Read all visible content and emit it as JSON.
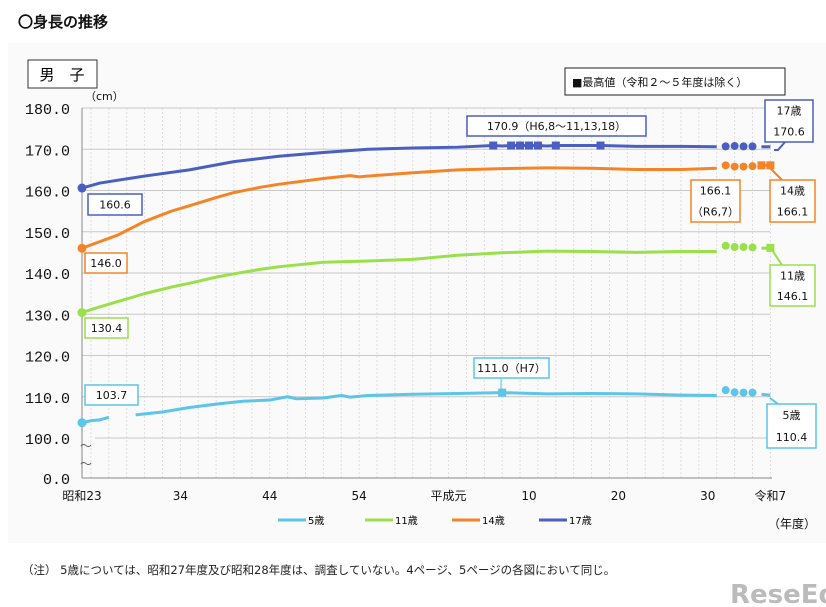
{
  "page_title": "〇身長の推移",
  "note": "（注） 5歳については、昭和27年度及び昭和28年度は、調査していない。4ページ、5ページの各図において同じ。",
  "watermark": "ReseEd",
  "chart_data": {
    "type": "line",
    "panel_label": "男　子",
    "ylabel": "（cm）",
    "xlabel": "（年度）",
    "legend_box": "■最高値（令和２～５年度は除く）",
    "legend_position": "bottom",
    "grid": true,
    "y_axis_break": "～",
    "yticks": [
      "0.0",
      "100.0",
      "110.0",
      "120.0",
      "130.0",
      "140.0",
      "150.0",
      "160.0",
      "170.0",
      "180.0"
    ],
    "ytick_values": [
      0,
      100,
      110,
      120,
      130,
      140,
      150,
      160,
      170,
      180
    ],
    "xticks": [
      {
        "label": "昭和23",
        "year": 1948
      },
      {
        "label": "34",
        "year": 1959
      },
      {
        "label": "44",
        "year": 1969
      },
      {
        "label": "54",
        "year": 1979
      },
      {
        "label": "平成元",
        "year": 1989
      },
      {
        "label": "10",
        "year": 1998
      },
      {
        "label": "20",
        "year": 2008
      },
      {
        "label": "30",
        "year": 2018
      },
      {
        "label": "令和7",
        "year": 2025
      }
    ],
    "xlim": [
      1948,
      2025
    ],
    "series": [
      {
        "name": "5歳",
        "color": "#5bc5ea",
        "max_years": [
          1995
        ],
        "points": [
          [
            1948,
            103.7
          ],
          [
            1949,
            104.2
          ],
          [
            1950,
            104.4
          ],
          [
            1951,
            105.0
          ],
          [
            1952,
            null
          ],
          [
            1953,
            null
          ],
          [
            1954,
            105.6
          ],
          [
            1957,
            106.3
          ],
          [
            1960,
            107.4
          ],
          [
            1963,
            108.2
          ],
          [
            1966,
            108.9
          ],
          [
            1969,
            109.2
          ],
          [
            1971,
            110.0
          ],
          [
            1972,
            109.5
          ],
          [
            1975,
            109.7
          ],
          [
            1977,
            110.3
          ],
          [
            1978,
            109.9
          ],
          [
            1980,
            110.3
          ],
          [
            1985,
            110.6
          ],
          [
            1990,
            110.8
          ],
          [
            1995,
            111.0
          ],
          [
            2000,
            110.7
          ],
          [
            2005,
            110.8
          ],
          [
            2010,
            110.7
          ],
          [
            2015,
            110.4
          ],
          [
            2019,
            110.3
          ],
          [
            2020,
            111.6
          ],
          [
            2021,
            111.1
          ],
          [
            2022,
            111.0
          ],
          [
            2023,
            111.0
          ],
          [
            2024,
            110.6
          ],
          [
            2025,
            110.4
          ]
        ]
      },
      {
        "name": "11歳",
        "color": "#99e04a",
        "max_years": [
          2025
        ],
        "points": [
          [
            1948,
            130.4
          ],
          [
            1950,
            131.8
          ],
          [
            1953,
            133.7
          ],
          [
            1955,
            135.0
          ],
          [
            1958,
            136.6
          ],
          [
            1960,
            137.5
          ],
          [
            1963,
            139.0
          ],
          [
            1965,
            139.8
          ],
          [
            1968,
            140.9
          ],
          [
            1970,
            141.5
          ],
          [
            1975,
            142.6
          ],
          [
            1980,
            142.9
          ],
          [
            1985,
            143.3
          ],
          [
            1990,
            144.3
          ],
          [
            1995,
            144.9
          ],
          [
            2000,
            145.3
          ],
          [
            2005,
            145.2
          ],
          [
            2010,
            145.0
          ],
          [
            2015,
            145.2
          ],
          [
            2019,
            145.2
          ],
          [
            2020,
            146.6
          ],
          [
            2021,
            146.3
          ],
          [
            2022,
            146.3
          ],
          [
            2023,
            146.2
          ],
          [
            2024,
            146.0
          ],
          [
            2025,
            146.1
          ]
        ]
      },
      {
        "name": "14歳",
        "color": "#f58426",
        "max_years": [
          2024,
          2025
        ],
        "points": [
          [
            1948,
            146.0
          ],
          [
            1950,
            147.6
          ],
          [
            1952,
            149.2
          ],
          [
            1955,
            152.5
          ],
          [
            1958,
            155.0
          ],
          [
            1960,
            156.3
          ],
          [
            1963,
            158.3
          ],
          [
            1965,
            159.5
          ],
          [
            1968,
            160.8
          ],
          [
            1970,
            161.5
          ],
          [
            1975,
            162.9
          ],
          [
            1978,
            163.6
          ],
          [
            1979,
            163.3
          ],
          [
            1980,
            163.5
          ],
          [
            1985,
            164.3
          ],
          [
            1990,
            165.0
          ],
          [
            1995,
            165.3
          ],
          [
            2000,
            165.5
          ],
          [
            2005,
            165.4
          ],
          [
            2010,
            165.1
          ],
          [
            2015,
            165.1
          ],
          [
            2019,
            165.4
          ],
          [
            2020,
            166.1
          ],
          [
            2021,
            165.8
          ],
          [
            2022,
            165.8
          ],
          [
            2023,
            165.9
          ],
          [
            2024,
            166.1
          ],
          [
            2025,
            166.1
          ]
        ]
      },
      {
        "name": "17歳",
        "color": "#4a5fc1",
        "max_years": [
          1994,
          1996,
          1997,
          1998,
          1999,
          2001,
          2006
        ],
        "points": [
          [
            1948,
            160.6
          ],
          [
            1950,
            161.8
          ],
          [
            1955,
            163.5
          ],
          [
            1960,
            165.0
          ],
          [
            1965,
            167.0
          ],
          [
            1970,
            168.3
          ],
          [
            1975,
            169.2
          ],
          [
            1980,
            170.0
          ],
          [
            1985,
            170.3
          ],
          [
            1990,
            170.5
          ],
          [
            1994,
            170.9
          ],
          [
            1995,
            170.8
          ],
          [
            1996,
            170.9
          ],
          [
            1997,
            170.9
          ],
          [
            1998,
            170.9
          ],
          [
            1999,
            170.9
          ],
          [
            2000,
            170.8
          ],
          [
            2001,
            170.9
          ],
          [
            2006,
            170.9
          ],
          [
            2010,
            170.7
          ],
          [
            2015,
            170.7
          ],
          [
            2019,
            170.6
          ],
          [
            2020,
            170.7
          ],
          [
            2021,
            170.8
          ],
          [
            2022,
            170.7
          ],
          [
            2023,
            170.7
          ],
          [
            2024,
            170.6
          ],
          [
            2025,
            170.6
          ]
        ]
      }
    ],
    "annotations": {
      "s17_start": "160.6",
      "s14_start": "146.0",
      "s11_start": "130.4",
      "s5_start": "103.7",
      "s17_max": "170.9（H6,8～11,13,18）",
      "s5_max": "111.0（H7）",
      "s14_max_1": "166.1",
      "s14_max_2": "（R6,7）",
      "s17_end_name": "17歳",
      "s17_end_value": "170.6",
      "s14_end_name": "14歳",
      "s14_end_value": "166.1",
      "s11_end_name": "11歳",
      "s11_end_value": "146.1",
      "s5_end_name": "5歳",
      "s5_end_value": "110.4"
    }
  }
}
